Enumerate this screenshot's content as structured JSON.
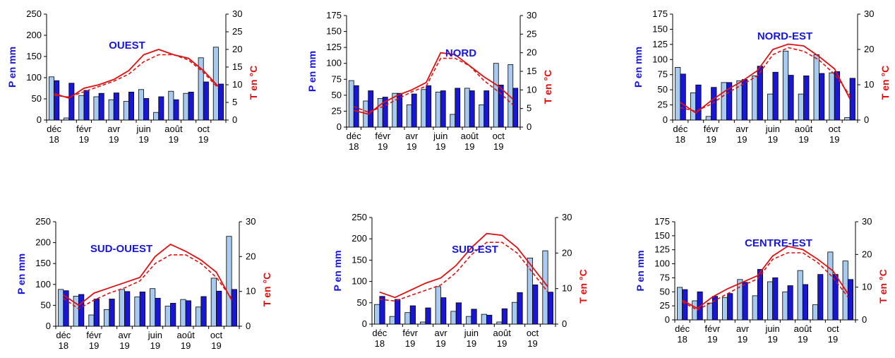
{
  "colors": {
    "bar_light": "#a6caf0",
    "bar_dark": "#1a16d6",
    "temp": "#e01010",
    "title": "#1616dc"
  },
  "labels": {
    "ylabel_left": "P en mm",
    "ylabel_right": "T en °C"
  },
  "x_tick_labels": [
    {
      "month": "déc",
      "year": "18"
    },
    {
      "month": "févr",
      "year": "19"
    },
    {
      "month": "avr",
      "year": "19"
    },
    {
      "month": "juin",
      "year": "19"
    },
    {
      "month": "août",
      "year": "19"
    },
    {
      "month": "oct",
      "year": "19"
    }
  ],
  "chart_data": [
    {
      "type": "bar",
      "title": "OUEST",
      "categories": [
        "déc 18",
        "janv 19",
        "févr 19",
        "mars 19",
        "avr 19",
        "mai 19",
        "juin 19",
        "juil 19",
        "août 19",
        "sept 19",
        "oct 19",
        "nov 19"
      ],
      "ylim": [
        0,
        250
      ],
      "yticks": [
        0,
        50,
        100,
        150,
        200,
        250
      ],
      "y2lim": [
        0,
        30
      ],
      "y2ticks": [
        0,
        5,
        10,
        15,
        20,
        25,
        30
      ],
      "series": [
        {
          "values": [
            102,
            5,
            58,
            55,
            48,
            44,
            72,
            18,
            68,
            63,
            147,
            172
          ]
        },
        {
          "values": [
            93,
            87,
            70,
            63,
            64,
            66,
            51,
            55,
            48,
            66,
            90,
            85
          ]
        },
        {
          "values": [
            7.5,
            6.2,
            9,
            10,
            11.5,
            14,
            18.5,
            20,
            18.5,
            17.5,
            14,
            9.5
          ]
        },
        {
          "values": [
            7,
            6.5,
            8,
            9.5,
            11,
            13,
            16.5,
            18.5,
            18.5,
            17,
            13.5,
            9
          ]
        }
      ]
    },
    {
      "type": "bar",
      "title": "NORD",
      "categories": [
        "déc 18",
        "janv 19",
        "févr 19",
        "mars 19",
        "avr 19",
        "mai 19",
        "juin 19",
        "juil 19",
        "août 19",
        "sept 19",
        "oct 19",
        "nov 19"
      ],
      "ylim": [
        0,
        175
      ],
      "yticks": [
        0,
        25,
        50,
        75,
        100,
        125,
        150,
        175
      ],
      "y2lim": [
        0,
        30
      ],
      "y2ticks": [
        0,
        5,
        10,
        15,
        20,
        25,
        30
      ],
      "series": [
        {
          "values": [
            73,
            41,
            45,
            53,
            35,
            59,
            55,
            20,
            61,
            35,
            100,
            98
          ]
        },
        {
          "values": [
            65,
            57,
            47,
            53,
            52,
            65,
            57,
            61,
            57,
            57,
            66,
            61
          ]
        },
        {
          "values": [
            4.5,
            3.5,
            6.5,
            8.5,
            10,
            12,
            20,
            19.5,
            16.5,
            13.5,
            11,
            7.5
          ]
        },
        {
          "values": [
            5.5,
            4,
            5.5,
            7.5,
            9.5,
            11,
            18.5,
            18.5,
            16.5,
            12.5,
            9.5,
            6
          ]
        }
      ]
    },
    {
      "type": "bar",
      "title": "NORD-EST",
      "categories": [
        "déc 18",
        "janv 19",
        "févr 19",
        "mars 19",
        "avr 19",
        "mai 19",
        "juin 19",
        "juil 19",
        "août 19",
        "sept 19",
        "oct 19",
        "nov 19"
      ],
      "ylim": [
        0,
        175
      ],
      "yticks": [
        0,
        25,
        50,
        75,
        100,
        125,
        150,
        175
      ],
      "y2lim": [
        0,
        30
      ],
      "y2ticks": [
        0,
        10,
        20,
        30
      ],
      "series": [
        {
          "values": [
            87,
            45,
            6,
            62,
            65,
            73,
            43,
            114,
            43,
            108,
            78,
            4
          ]
        },
        {
          "values": [
            76,
            58,
            54,
            62,
            67,
            89,
            79,
            74,
            73,
            77,
            80,
            69
          ]
        },
        {
          "values": [
            5,
            2,
            5.5,
            8.5,
            11,
            14,
            20,
            21.5,
            21,
            18,
            14.5,
            6
          ]
        },
        {
          "values": [
            3.5,
            2.5,
            4.5,
            7.5,
            10,
            12.5,
            18.5,
            20.5,
            19.5,
            17,
            13,
            7
          ]
        }
      ]
    },
    {
      "type": "bar",
      "title": "SUD-OUEST",
      "categories": [
        "déc 18",
        "janv 19",
        "févr 19",
        "mars 19",
        "avr 19",
        "mai 19",
        "juin 19",
        "juil 19",
        "août 19",
        "sept 19",
        "oct 19",
        "nov 19"
      ],
      "ylim": [
        0,
        250
      ],
      "yticks": [
        0,
        50,
        100,
        150,
        200,
        250
      ],
      "y2lim": [
        0,
        30
      ],
      "y2ticks": [
        0,
        10,
        20,
        30
      ],
      "series": [
        {
          "values": [
            88,
            72,
            27,
            40,
            88,
            70,
            90,
            48,
            64,
            46,
            115,
            215
          ]
        },
        {
          "values": [
            85,
            76,
            65,
            65,
            83,
            82,
            67,
            55,
            61,
            71,
            84,
            88
          ]
        },
        {
          "values": [
            9,
            6,
            9.5,
            11,
            12.5,
            14,
            20,
            23.5,
            21.5,
            19,
            15.5,
            7.5
          ]
        },
        {
          "values": [
            8,
            5,
            7.5,
            9.5,
            11,
            13,
            18,
            20.5,
            20.5,
            18,
            14,
            8
          ]
        }
      ]
    },
    {
      "type": "bar",
      "title": "SUD-EST",
      "categories": [
        "déc 18",
        "janv 19",
        "févr 19",
        "mars 19",
        "avr 19",
        "mai 19",
        "juin 19",
        "juil 19",
        "août 19",
        "sept 19",
        "oct 19",
        "nov 19"
      ],
      "ylim": [
        0,
        250
      ],
      "yticks": [
        0,
        50,
        100,
        150,
        200,
        250
      ],
      "y2lim": [
        0,
        30
      ],
      "y2ticks": [
        0,
        10,
        20,
        30
      ],
      "series": [
        {
          "values": [
            46,
            18,
            27,
            5,
            88,
            30,
            18,
            23,
            5,
            51,
            155,
            172
          ]
        },
        {
          "values": [
            65,
            58,
            43,
            38,
            62,
            50,
            35,
            21,
            36,
            74,
            92,
            75
          ]
        },
        {
          "values": [
            9,
            7.5,
            9.5,
            11.5,
            13,
            16.5,
            21.5,
            25.5,
            25,
            21.5,
            16,
            10.5
          ]
        },
        {
          "values": [
            7,
            6.5,
            8,
            9.5,
            11,
            14.5,
            19.5,
            23,
            23,
            20,
            14.5,
            9
          ]
        }
      ]
    },
    {
      "type": "bar",
      "title": "CENTRE-EST",
      "categories": [
        "déc 18",
        "janv 19",
        "févr 19",
        "mars 19",
        "avr 19",
        "mai 19",
        "juin 19",
        "juil 19",
        "août 19",
        "sept 19",
        "oct 19",
        "nov 19"
      ],
      "ylim": [
        0,
        175
      ],
      "yticks": [
        0,
        25,
        50,
        75,
        100,
        125,
        150,
        175
      ],
      "y2lim": [
        0,
        30
      ],
      "y2ticks": [
        0,
        10,
        20,
        30
      ],
      "series": [
        {
          "values": [
            58,
            34,
            30,
            40,
            72,
            43,
            68,
            50,
            88,
            27,
            121,
            105
          ]
        },
        {
          "values": [
            54,
            50,
            42,
            47,
            67,
            90,
            75,
            61,
            63,
            81,
            81,
            72
          ]
        },
        {
          "values": [
            6,
            3.5,
            7,
            9.5,
            11.5,
            13.5,
            19.5,
            22.5,
            21.5,
            18.5,
            15,
            8
          ]
        },
        {
          "values": [
            5.5,
            3,
            5.5,
            8,
            10.5,
            12.5,
            18.5,
            20.5,
            20.5,
            17.5,
            13,
            7
          ]
        }
      ]
    }
  ]
}
